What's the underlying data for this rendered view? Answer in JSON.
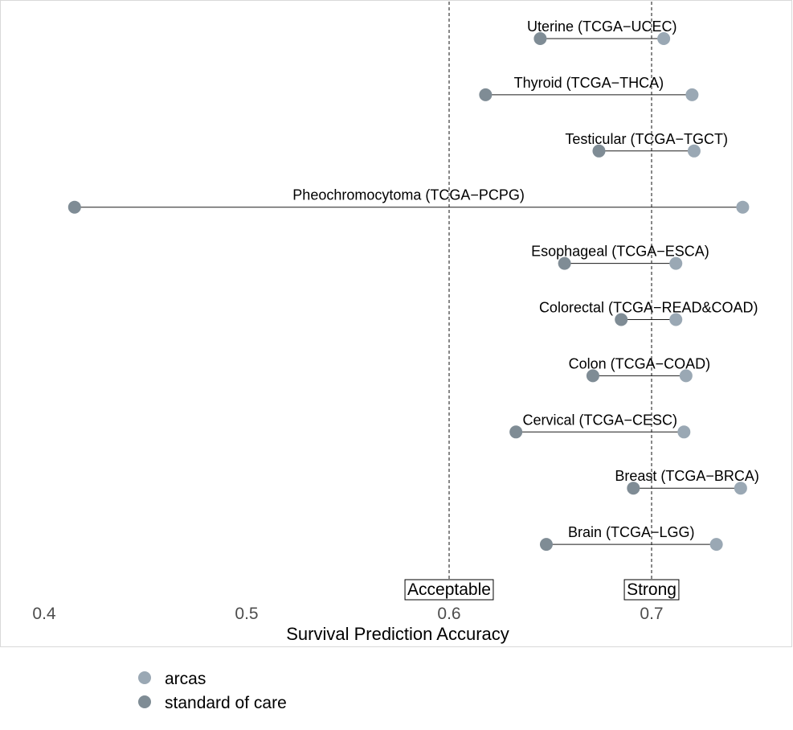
{
  "chart_data": {
    "type": "dumbbell",
    "title": "",
    "xlabel": "Survival Prediction Accuracy",
    "ylabel": "",
    "xlim": [
      0.38,
      0.75
    ],
    "x_ticks": [
      0.4,
      0.5,
      0.6,
      0.7
    ],
    "x_tick_labels": [
      "0.4",
      "0.5",
      "0.6",
      "0.7"
    ],
    "grid": false,
    "legend_position": "bottom-left",
    "series": [
      {
        "name": "arcas",
        "color": "#9aa8b4"
      },
      {
        "name": "standard of care",
        "color": "#7f8c95"
      }
    ],
    "reference_lines": [
      {
        "x": 0.6,
        "label": "Acceptable",
        "style": "dashed"
      },
      {
        "x": 0.7,
        "label": "Strong",
        "style": "dashed"
      }
    ],
    "rows": [
      {
        "label": "Uterine (TCGA−UCEC)",
        "arcas": 0.706,
        "standard_of_care": 0.645
      },
      {
        "label": "Thyroid (TCGA−THCA)",
        "arcas": 0.72,
        "standard_of_care": 0.618
      },
      {
        "label": "Testicular (TCGA−TGCT)",
        "arcas": 0.721,
        "standard_of_care": 0.674
      },
      {
        "label": "Pheochromocytoma (TCGA−PCPG)",
        "arcas": 0.745,
        "standard_of_care": 0.415
      },
      {
        "label": "Esophageal (TCGA−ESCA)",
        "arcas": 0.712,
        "standard_of_care": 0.657
      },
      {
        "label": "Colorectal (TCGA−READ&COAD)",
        "arcas": 0.712,
        "standard_of_care": 0.685
      },
      {
        "label": "Colon (TCGA−COAD)",
        "arcas": 0.717,
        "standard_of_care": 0.671
      },
      {
        "label": "Cervical (TCGA−CESC)",
        "arcas": 0.716,
        "standard_of_care": 0.633
      },
      {
        "label": "Breast (TCGA−BRCA)",
        "arcas": 0.744,
        "standard_of_care": 0.691
      },
      {
        "label": "Brain (TCGA−LGG)",
        "arcas": 0.732,
        "standard_of_care": 0.648
      }
    ]
  }
}
